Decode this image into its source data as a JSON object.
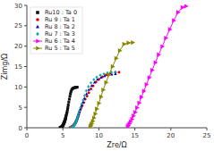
{
  "chart_data": {
    "type": "scatter",
    "title": "",
    "x_label": "Zre/Ω",
    "y_label": "Zimg/Ω",
    "xlim": [
      0,
      25
    ],
    "ylim": [
      0,
      30
    ],
    "xticks": [
      0,
      5,
      10,
      15,
      20,
      25
    ],
    "yticks": [
      0,
      5,
      10,
      15,
      20,
      25,
      30
    ],
    "grid": false,
    "legend": "upper left",
    "series": [
      {
        "name": "Ru10 : Ta 0",
        "color": "#111111",
        "marker": "square",
        "type": "scatter",
        "x": [
          4.6,
          4.65,
          4.7,
          4.75,
          4.8,
          4.85,
          4.9,
          4.92,
          4.95,
          4.98,
          5.0,
          5.02,
          5.05,
          5.08,
          5.1,
          5.12,
          5.15,
          5.18,
          5.2,
          5.22,
          5.25,
          5.28,
          5.3,
          5.33,
          5.35,
          5.38,
          5.4,
          5.42,
          5.45,
          5.5,
          5.55,
          5.6,
          5.65,
          5.7,
          5.75,
          5.82,
          5.9,
          5.98,
          6.05,
          6.12,
          6.2,
          6.3,
          6.4,
          6.5,
          6.6,
          6.7,
          6.8,
          6.9,
          7.0
        ],
        "values": [
          0.05,
          0.08,
          0.12,
          0.16,
          0.2,
          0.25,
          0.3,
          0.36,
          0.42,
          0.5,
          0.58,
          0.66,
          0.75,
          0.85,
          0.95,
          1.05,
          1.15,
          1.25,
          1.36,
          1.48,
          1.6,
          1.72,
          1.85,
          2.0,
          2.15,
          2.3,
          2.5,
          2.7,
          2.95,
          3.25,
          3.6,
          4.0,
          4.5,
          5.0,
          5.6,
          6.3,
          7.0,
          7.7,
          8.3,
          8.8,
          9.2,
          9.5,
          9.65,
          9.75,
          9.82,
          9.87,
          9.9,
          9.93,
          9.95
        ]
      },
      {
        "name": "Ru 9 : Ta 1",
        "color": "#dd0000",
        "marker": "circle",
        "type": "scatter",
        "x": [
          6.0,
          6.05,
          6.1,
          6.15,
          6.2,
          6.25,
          6.3,
          6.35,
          6.4,
          6.45,
          6.5,
          6.55,
          6.6,
          6.65,
          6.7,
          6.75,
          6.8,
          6.85,
          6.9,
          6.95,
          7.0,
          7.05,
          7.1,
          7.15,
          7.2,
          7.3,
          7.4,
          7.55,
          7.7,
          7.9,
          8.1,
          8.35,
          8.6,
          8.9,
          9.2,
          9.6,
          10.0,
          10.5,
          11.0,
          11.6,
          12.3,
          12.8
        ],
        "values": [
          0.05,
          0.08,
          0.12,
          0.16,
          0.21,
          0.27,
          0.33,
          0.4,
          0.48,
          0.57,
          0.67,
          0.78,
          0.9,
          1.03,
          1.17,
          1.32,
          1.48,
          1.65,
          1.83,
          2.03,
          2.25,
          2.5,
          2.75,
          3.05,
          3.35,
          3.8,
          4.3,
          4.9,
          5.5,
          6.2,
          7.0,
          7.8,
          8.6,
          9.5,
          10.3,
          11.2,
          11.9,
          12.5,
          13.0,
          13.3,
          13.55,
          13.65
        ]
      },
      {
        "name": "Ru 8 : Ta 2",
        "color": "#0000cc",
        "marker": "triangle-up",
        "type": "scatter",
        "x": [
          6.1,
          6.15,
          6.2,
          6.25,
          6.3,
          6.35,
          6.4,
          6.45,
          6.5,
          6.55,
          6.6,
          6.65,
          6.7,
          6.75,
          6.8,
          6.85,
          6.9,
          6.95,
          7.0,
          7.05,
          7.1,
          7.2,
          7.3,
          7.45,
          7.6,
          7.8,
          8.0,
          8.3,
          8.6,
          9.0,
          9.4,
          9.8,
          10.3,
          10.8,
          11.3,
          11.8,
          12.3
        ],
        "values": [
          0.05,
          0.08,
          0.12,
          0.17,
          0.23,
          0.3,
          0.38,
          0.47,
          0.57,
          0.68,
          0.8,
          0.93,
          1.08,
          1.24,
          1.42,
          1.62,
          1.83,
          2.07,
          2.33,
          2.62,
          2.93,
          3.4,
          3.95,
          4.65,
          5.4,
          6.3,
          7.2,
          8.3,
          9.3,
          10.3,
          11.1,
          11.8,
          12.3,
          12.7,
          12.95,
          13.1,
          13.2
        ]
      },
      {
        "name": "Ru 7 : Ta 3",
        "color": "#00aaaa",
        "marker": "diamond",
        "type": "scatter",
        "x": [
          6.15,
          6.2,
          6.25,
          6.3,
          6.35,
          6.4,
          6.45,
          6.5,
          6.55,
          6.6,
          6.65,
          6.7,
          6.75,
          6.8,
          6.85,
          6.9,
          6.95,
          7.0,
          7.05,
          7.1,
          7.2,
          7.3,
          7.45,
          7.6,
          7.8,
          8.0,
          8.25,
          8.55,
          8.9,
          9.3,
          9.7,
          10.2,
          10.7,
          11.2,
          11.75,
          12.3
        ],
        "values": [
          0.05,
          0.08,
          0.12,
          0.17,
          0.23,
          0.3,
          0.38,
          0.48,
          0.59,
          0.71,
          0.84,
          0.99,
          1.16,
          1.34,
          1.54,
          1.77,
          2.02,
          2.3,
          2.6,
          2.95,
          3.5,
          4.1,
          4.9,
          5.8,
          6.8,
          7.9,
          9.1,
          10.1,
          11.0,
          11.8,
          12.4,
          12.9,
          13.2,
          13.45,
          13.6,
          13.7
        ]
      },
      {
        "name": "Ru 6 : Ta 4",
        "color": "#ff00ff",
        "marker": "triangle-right",
        "type": "line",
        "x": [
          14.0,
          14.1,
          14.25,
          14.4,
          14.6,
          14.8,
          15.05,
          15.3,
          15.6,
          15.9,
          16.25,
          16.6,
          17.0,
          17.4,
          17.85,
          18.3,
          18.8,
          19.3,
          19.85,
          20.4,
          21.0,
          21.6,
          22.1
        ],
        "values": [
          0.3,
          0.6,
          1.0,
          1.5,
          2.1,
          2.9,
          3.8,
          4.9,
          6.1,
          7.5,
          9.0,
          10.6,
          12.3,
          14.1,
          16.0,
          17.9,
          19.9,
          22.0,
          24.1,
          26.3,
          28.3,
          29.5,
          29.8
        ]
      },
      {
        "name": "Ru 5 : Ta 5",
        "color": "#888800",
        "marker": "triangle-right",
        "type": "line",
        "x": [
          8.8,
          8.9,
          9.0,
          9.15,
          9.3,
          9.5,
          9.7,
          10.0,
          10.3,
          10.6,
          11.0,
          11.4,
          11.9,
          12.4,
          12.9,
          13.5,
          14.1,
          14.7
        ],
        "values": [
          0.3,
          0.6,
          1.0,
          1.6,
          2.4,
          3.4,
          4.6,
          6.0,
          7.6,
          9.3,
          11.1,
          13.0,
          15.0,
          17.0,
          18.9,
          20.5,
          20.8,
          20.9
        ]
      }
    ]
  }
}
